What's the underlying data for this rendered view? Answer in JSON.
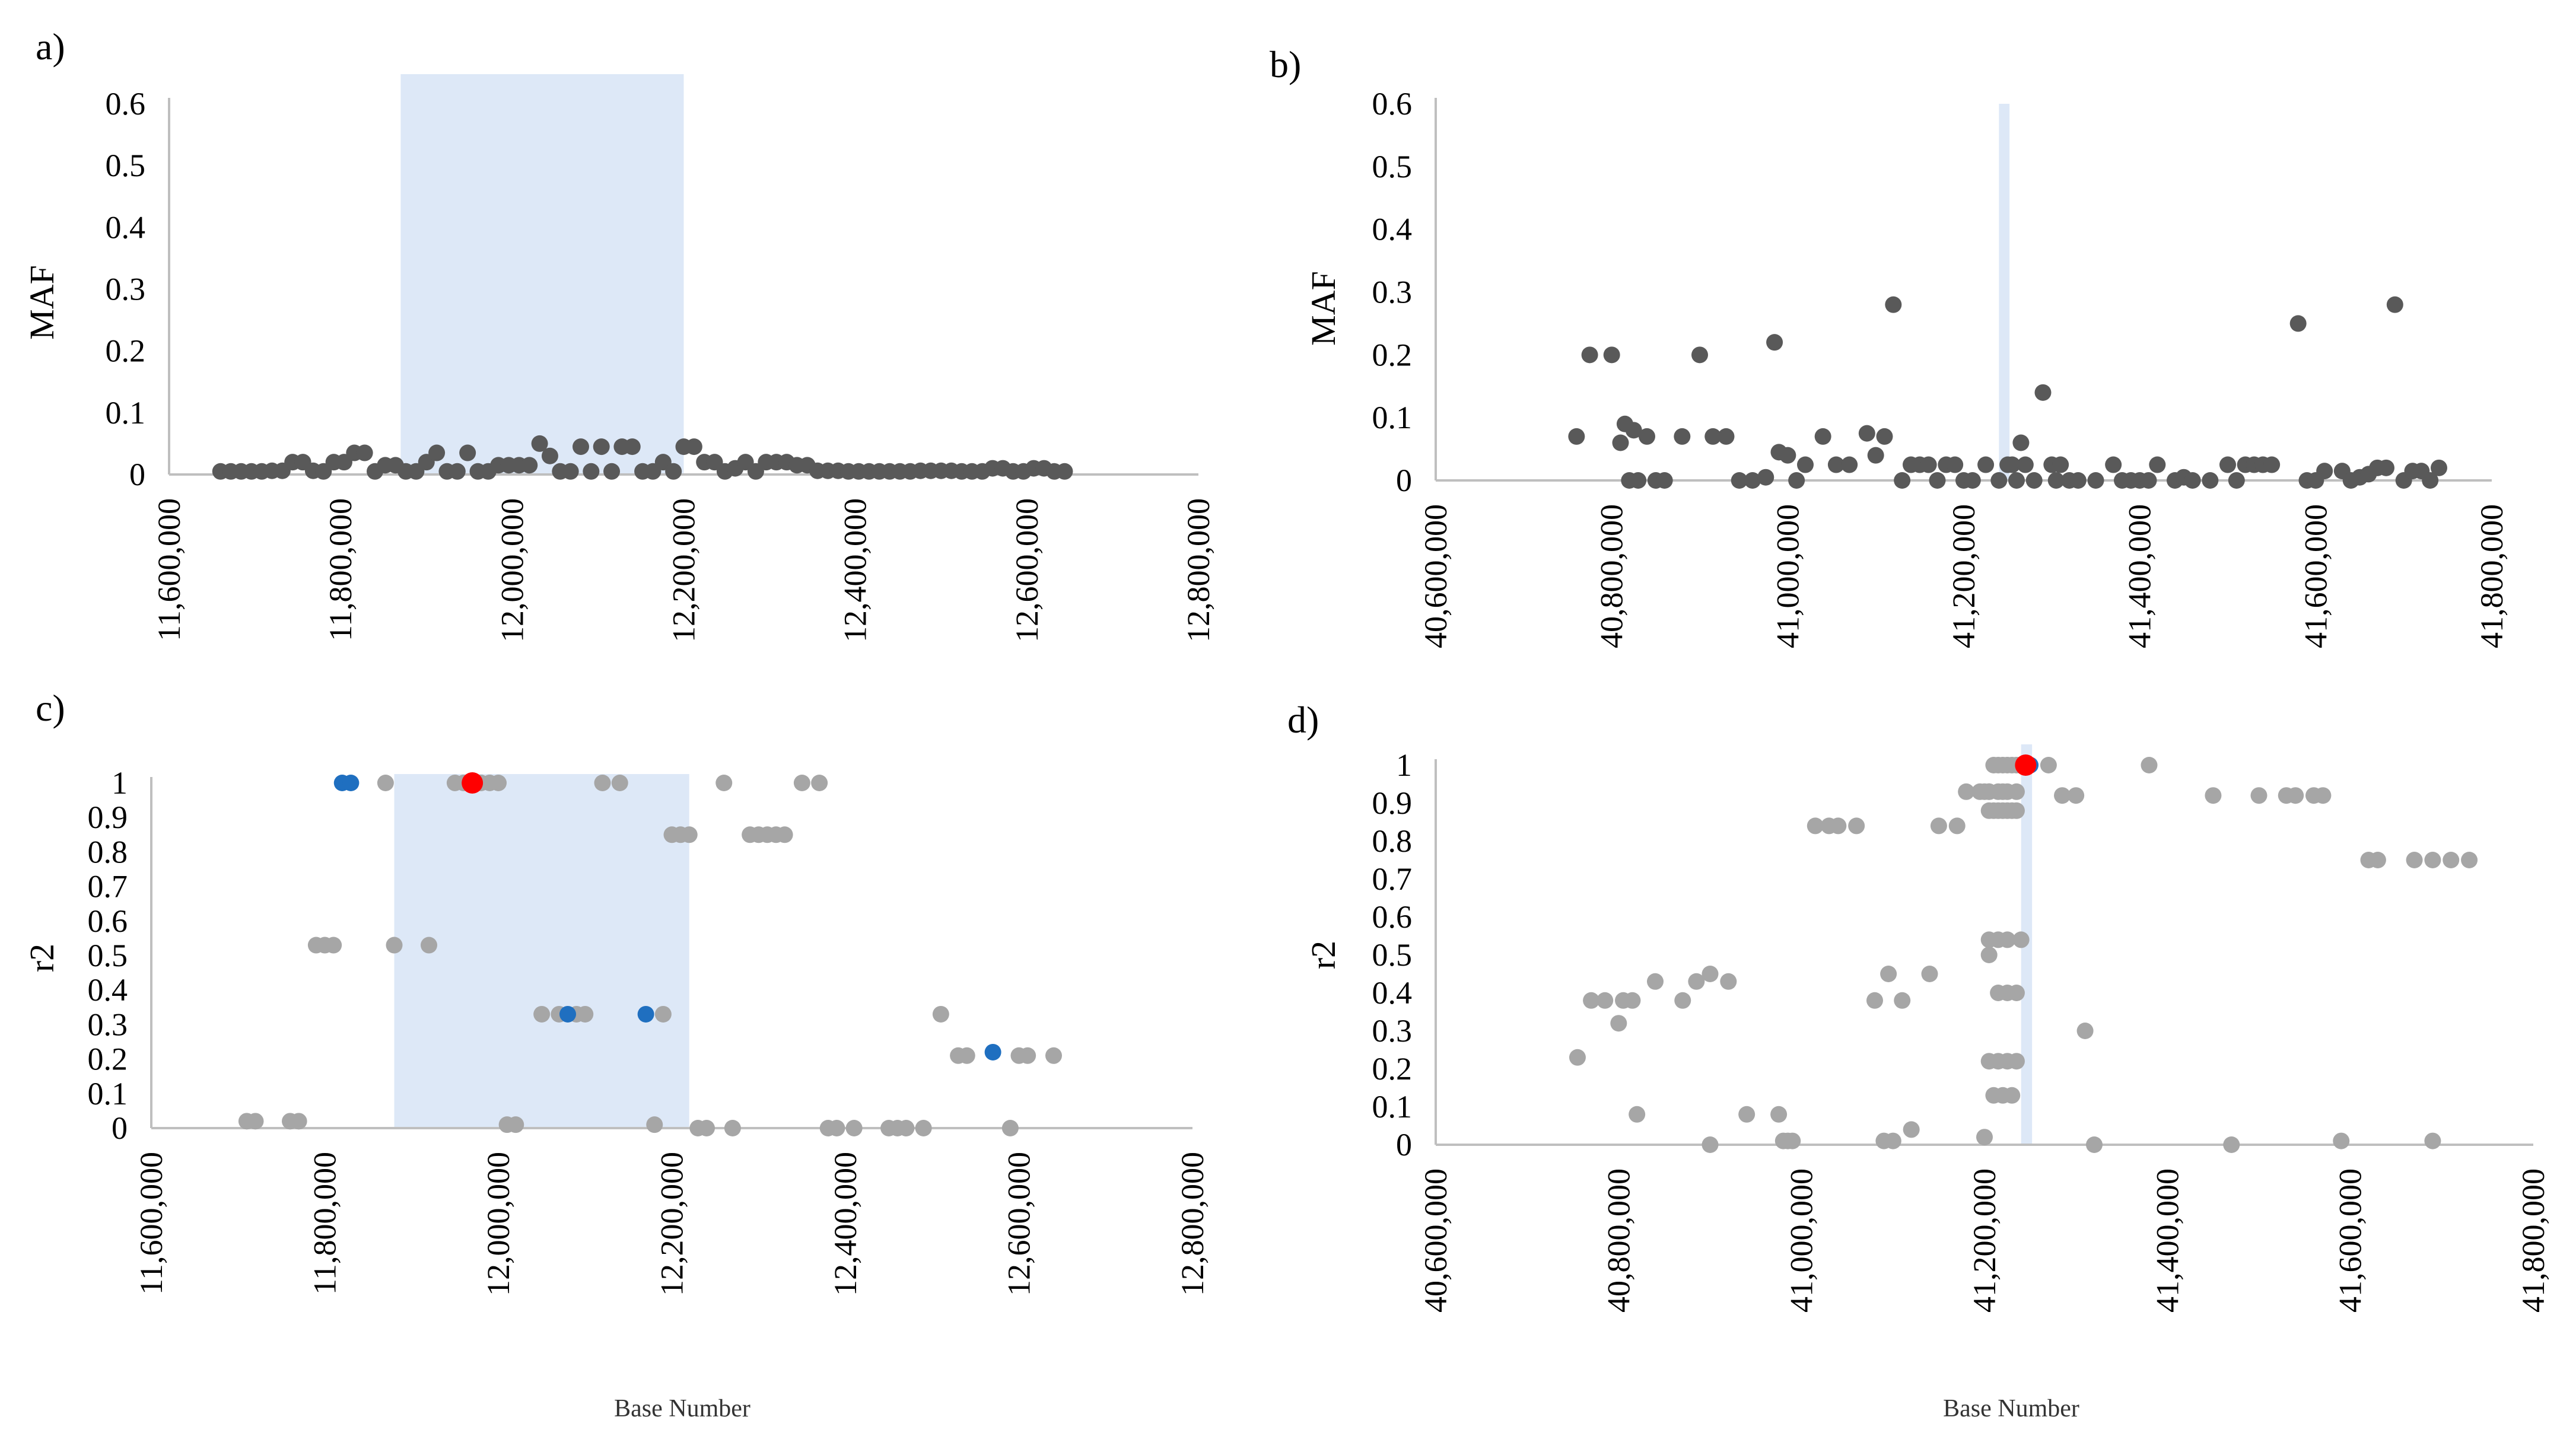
{
  "colors": {
    "band": "#dde8f7",
    "maf_point": "#595959",
    "r2_point": "#a6a6a6",
    "blue_point": "#1f6fc0",
    "red_point": "#ff0000",
    "axis": "#bfbfbf"
  },
  "chart_data": [
    {
      "id": "a",
      "label": "a)",
      "type": "scatter",
      "ylabel": "MAF",
      "xlabel": "",
      "xlim": [
        11600000,
        12800000
      ],
      "ylim": [
        0,
        0.6
      ],
      "xticks": [
        "11,600,000",
        "11,800,000",
        "12,000,000",
        "12,200,000",
        "12,400,000",
        "12,600,000",
        "12,800,000"
      ],
      "yticks": [
        "0",
        "0.1",
        "0.2",
        "0.3",
        "0.4",
        "0.5",
        "0.6"
      ],
      "highlight_region": [
        11870000,
        12200000
      ],
      "series": [
        {
          "name": "MAF",
          "color": "#595959",
          "x": [
            11660000,
            11672000,
            11684000,
            11696000,
            11708000,
            11720000,
            11732000,
            11744000,
            11756000,
            11768000,
            11780000,
            11792000,
            11804000,
            11816000,
            11828000,
            11840000,
            11852000,
            11864000,
            11876000,
            11888000,
            11900000,
            11912000,
            11924000,
            11936000,
            11948000,
            11960000,
            11972000,
            11984000,
            11996000,
            12008000,
            12020000,
            12032000,
            12044000,
            12056000,
            12068000,
            12080000,
            12092000,
            12104000,
            12116000,
            12128000,
            12140000,
            12152000,
            12164000,
            12176000,
            12188000,
            12200000,
            12212000,
            12224000,
            12236000,
            12248000,
            12260000,
            12272000,
            12284000,
            12296000,
            12308000,
            12320000,
            12332000,
            12344000,
            12356000,
            12368000,
            12380000,
            12392000,
            12404000,
            12416000,
            12428000,
            12440000,
            12452000,
            12464000,
            12476000,
            12488000,
            12500000,
            12512000,
            12524000,
            12536000,
            12548000,
            12560000,
            12572000,
            12584000,
            12596000,
            12608000,
            12620000,
            12632000,
            12644000
          ],
          "y": [
            0.005,
            0.005,
            0.005,
            0.005,
            0.005,
            0.006,
            0.006,
            0.02,
            0.02,
            0.006,
            0.005,
            0.02,
            0.02,
            0.035,
            0.035,
            0.005,
            0.015,
            0.015,
            0.005,
            0.005,
            0.02,
            0.035,
            0.005,
            0.005,
            0.035,
            0.005,
            0.005,
            0.015,
            0.015,
            0.015,
            0.015,
            0.05,
            0.03,
            0.005,
            0.005,
            0.045,
            0.005,
            0.045,
            0.005,
            0.045,
            0.045,
            0.005,
            0.005,
            0.02,
            0.005,
            0.045,
            0.045,
            0.02,
            0.02,
            0.005,
            0.01,
            0.02,
            0.005,
            0.02,
            0.02,
            0.02,
            0.015,
            0.015,
            0.006,
            0.006,
            0.006,
            0.005,
            0.005,
            0.005,
            0.005,
            0.005,
            0.005,
            0.005,
            0.006,
            0.006,
            0.006,
            0.006,
            0.005,
            0.005,
            0.005,
            0.01,
            0.01,
            0.005,
            0.005,
            0.01,
            0.01,
            0.005,
            0.005
          ]
        }
      ]
    },
    {
      "id": "b",
      "label": "b)",
      "type": "scatter",
      "ylabel": "MAF",
      "xlabel": "",
      "xlim": [
        40600000,
        41800000
      ],
      "ylim": [
        0,
        0.6
      ],
      "xticks": [
        "40,600,000",
        "40,800,000",
        "41,000,000",
        "41,200,000",
        "41,400,000",
        "41,600,000",
        "41,800,000"
      ],
      "yticks": [
        "0",
        "0.1",
        "0.2",
        "0.3",
        "0.4",
        "0.5",
        "0.6"
      ],
      "highlight_region": [
        41240000,
        41252000
      ],
      "series": [
        {
          "name": "MAF",
          "color": "#595959",
          "x": [
            40760000,
            40775000,
            40800000,
            40810000,
            40815000,
            40820000,
            40825000,
            40830000,
            40840000,
            40850000,
            40860000,
            40880000,
            40900000,
            40915000,
            40930000,
            40945000,
            40960000,
            40975000,
            40985000,
            40990000,
            41000000,
            41010000,
            41020000,
            41040000,
            41055000,
            41070000,
            41090000,
            41100000,
            41110000,
            41120000,
            41130000,
            41140000,
            41150000,
            41160000,
            41170000,
            41180000,
            41190000,
            41200000,
            41210000,
            41225000,
            41240000,
            41250000,
            41255000,
            41260000,
            41265000,
            41270000,
            41280000,
            41290000,
            41300000,
            41305000,
            41310000,
            41320000,
            41330000,
            41350000,
            41370000,
            41380000,
            41390000,
            41400000,
            41410000,
            41420000,
            41440000,
            41450000,
            41460000,
            41480000,
            41500000,
            41510000,
            41520000,
            41530000,
            41540000,
            41550000,
            41580000,
            41590000,
            41600000,
            41610000,
            41630000,
            41640000,
            41650000,
            41660000,
            41670000,
            41680000,
            41690000,
            41700000,
            41710000,
            41720000,
            41730000,
            41740000
          ],
          "y": [
            0.07,
            0.2,
            0.2,
            0.06,
            0.09,
            0.0,
            0.08,
            0.0,
            0.07,
            0.0,
            0.0,
            0.07,
            0.2,
            0.07,
            0.07,
            0.0,
            0.0,
            0.005,
            0.22,
            0.045,
            0.04,
            0.0,
            0.025,
            0.07,
            0.025,
            0.025,
            0.075,
            0.04,
            0.07,
            0.28,
            0.0,
            0.025,
            0.025,
            0.025,
            0.0,
            0.025,
            0.025,
            0.0,
            0.0,
            0.025,
            0.0,
            0.025,
            0.025,
            0.0,
            0.06,
            0.025,
            0.0,
            0.14,
            0.025,
            0.0,
            0.025,
            0.0,
            0.0,
            0.0,
            0.025,
            0.0,
            0.0,
            0.0,
            0.0,
            0.025,
            0.0,
            0.005,
            0.0,
            0.0,
            0.025,
            0.0,
            0.025,
            0.025,
            0.025,
            0.025,
            0.25,
            0.0,
            0.0,
            0.015,
            0.015,
            0.0,
            0.005,
            0.01,
            0.02,
            0.02,
            0.28,
            0.0,
            0.015,
            0.015,
            0.0,
            0.02
          ]
        }
      ]
    },
    {
      "id": "c",
      "label": "c)",
      "type": "scatter",
      "ylabel": "r2",
      "xlabel": "Base Number",
      "xlim": [
        11600000,
        12800000
      ],
      "ylim": [
        0,
        1
      ],
      "xticks": [
        "11,600,000",
        "11,800,000",
        "12,000,000",
        "12,200,000",
        "12,400,000",
        "12,600,000",
        "12,800,000"
      ],
      "yticks": [
        "0",
        "0.1",
        "0.2",
        "0.3",
        "0.4",
        "0.5",
        "0.6",
        "0.7",
        "0.8",
        "0.9",
        "1"
      ],
      "highlight_region": [
        11880000,
        12220000
      ],
      "series": [
        {
          "name": "r2",
          "color": "#a6a6a6",
          "x": [
            11710000,
            11720000,
            11760000,
            11770000,
            11790000,
            11800000,
            11810000,
            11870000,
            11880000,
            11920000,
            11950000,
            11960000,
            11980000,
            11990000,
            12000000,
            12010000,
            12020000,
            12050000,
            12070000,
            12090000,
            12100000,
            12120000,
            12140000,
            12180000,
            12190000,
            12200000,
            12210000,
            12220000,
            12230000,
            12240000,
            12260000,
            12270000,
            12290000,
            12300000,
            12310000,
            12320000,
            12330000,
            12350000,
            12370000,
            12380000,
            12390000,
            12410000,
            12450000,
            12460000,
            12470000,
            12490000,
            12510000,
            12530000,
            12540000,
            12590000,
            12600000,
            12610000,
            12640000
          ],
          "y": [
            0.02,
            0.02,
            0.02,
            0.02,
            0.53,
            0.53,
            0.53,
            1,
            0.53,
            0.53,
            1,
            1,
            1,
            1,
            1,
            0.01,
            0.01,
            0.33,
            0.33,
            0.33,
            0.33,
            1,
            1,
            0.01,
            0.33,
            0.85,
            0.85,
            0.85,
            0.0,
            0.0,
            1,
            0.0,
            0.85,
            0.85,
            0.85,
            0.85,
            0.85,
            1,
            1,
            0.0,
            0.0,
            0.0,
            0.0,
            0.0,
            0.0,
            0.0,
            0.33,
            0.21,
            0.21,
            0.0,
            0.21,
            0.21,
            0.21
          ]
        },
        {
          "name": "r2-blue",
          "color": "#1f6fc0",
          "x": [
            11820000,
            11830000,
            12080000,
            12170000,
            12570000
          ],
          "y": [
            1,
            1,
            0.33,
            0.33,
            0.22
          ]
        },
        {
          "name": "index",
          "color": "#ff0000",
          "x": [
            11970000
          ],
          "y": [
            1
          ]
        }
      ]
    },
    {
      "id": "d",
      "label": "d)",
      "type": "scatter",
      "ylabel": "r2",
      "xlabel": "Base Number",
      "xlim": [
        40600000,
        41800000
      ],
      "ylim": [
        0,
        1
      ],
      "xticks": [
        "40,600,000",
        "40,800,000",
        "41,000,000",
        "41,200,000",
        "41,400,000",
        "41,600,000",
        "41,800,000"
      ],
      "yticks": [
        "0",
        "0.1",
        "0.2",
        "0.3",
        "0.4",
        "0.5",
        "0.6",
        "0.7",
        "0.8",
        "0.9",
        "1"
      ],
      "highlight_region": [
        41240000,
        41252000
      ],
      "series": [
        {
          "name": "r2",
          "color": "#a6a6a6",
          "x": [
            40755000,
            40770000,
            40785000,
            40800000,
            40805000,
            40815000,
            40820000,
            40840000,
            40870000,
            40885000,
            40900000,
            40920000,
            40940000,
            40975000,
            40980000,
            40985000,
            40990000,
            41015000,
            41030000,
            41040000,
            41060000,
            41080000,
            41090000,
            41095000,
            41100000,
            41110000,
            41120000,
            41140000,
            41150000,
            41170000,
            41180000,
            41195000,
            41200000,
            41205000,
            41210000,
            41215000,
            41220000,
            41225000,
            41230000,
            41235000,
            41205000,
            41210000,
            41215000,
            41220000,
            41225000,
            41230000,
            41235000,
            41205000,
            41215000,
            41220000,
            41225000,
            41235000,
            41205000,
            41215000,
            41225000,
            41240000,
            41205000,
            41215000,
            41225000,
            41235000,
            41200000,
            41205000,
            41215000,
            41225000,
            41235000,
            41210000,
            41220000,
            41230000,
            41270000,
            41285000,
            41300000,
            41310000,
            41320000,
            41380000,
            41450000,
            41500000,
            41530000,
            41540000,
            41560000,
            41570000,
            41620000,
            41630000,
            41670000,
            41690000,
            41710000,
            41730000,
            41470000,
            41590000,
            41690000,
            40900000
          ],
          "y": [
            0.23,
            0.38,
            0.38,
            0.32,
            0.38,
            0.38,
            0.08,
            0.43,
            0.38,
            0.43,
            0.45,
            0.43,
            0.08,
            0.08,
            0.01,
            0.01,
            0.01,
            0.84,
            0.84,
            0.84,
            0.84,
            0.38,
            0.01,
            0.45,
            0.01,
            0.38,
            0.04,
            0.45,
            0.84,
            0.84,
            0.93,
            0.93,
            0.93,
            0.93,
            1,
            1,
            1,
            1,
            1,
            1,
            0.88,
            0.88,
            0.88,
            0.88,
            0.88,
            0.88,
            0.88,
            0.93,
            0.93,
            0.93,
            0.93,
            0.93,
            0.54,
            0.54,
            0.54,
            0.54,
            0.5,
            0.4,
            0.4,
            0.4,
            0.02,
            0.22,
            0.22,
            0.22,
            0.22,
            0.13,
            0.13,
            0.13,
            1,
            0.92,
            0.92,
            0.3,
            0.0,
            1,
            0.92,
            0.92,
            0.92,
            0.92,
            0.92,
            0.92,
            0.75,
            0.75,
            0.75,
            0.75,
            0.75,
            0.75,
            0.0,
            0.01,
            0.01,
            0.0
          ]
        },
        {
          "name": "r2-blue",
          "color": "#1f6fc0",
          "x": [
            41250000
          ],
          "y": [
            1
          ]
        },
        {
          "name": "index",
          "color": "#ff0000",
          "x": [
            41245000
          ],
          "y": [
            1
          ]
        }
      ]
    }
  ]
}
